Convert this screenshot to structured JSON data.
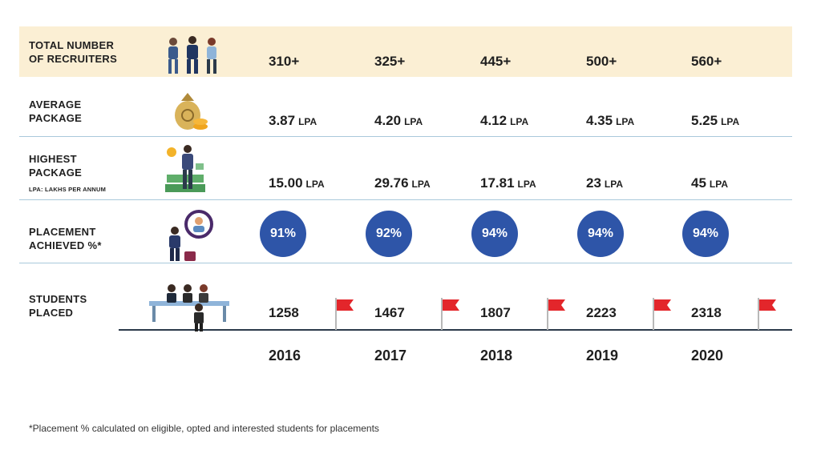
{
  "chart_data": {
    "type": "table",
    "columns": [
      "2016",
      "2017",
      "2018",
      "2019",
      "2020"
    ],
    "rows": [
      {
        "label": "TOTAL NUMBER OF RECRUITERS",
        "label_lines": [
          "TOTAL NUMBER",
          "OF RECRUITERS"
        ],
        "icon": "recruiters-icon",
        "values": [
          "310+",
          "325+",
          "445+",
          "500+",
          "560+"
        ],
        "numbers": [
          310,
          325,
          445,
          500,
          560
        ]
      },
      {
        "label": "AVERAGE PACKAGE",
        "label_lines": [
          "AVERAGE",
          "PACKAGE"
        ],
        "icon": "money-bag-icon",
        "values": [
          "3.87",
          "4.20",
          "4.12",
          "4.35",
          "5.25"
        ],
        "unit": "LPA",
        "numbers": [
          3.87,
          4.2,
          4.12,
          4.35,
          5.25
        ]
      },
      {
        "label": "HIGHEST PACKAGE",
        "label_lines": [
          "HIGHEST",
          "PACKAGE"
        ],
        "sublabel": "LPA: LAKHS PER ANNUM",
        "icon": "businessman-money-icon",
        "values": [
          "15.00",
          "29.76",
          "17.81",
          "23",
          "45"
        ],
        "unit": "LPA",
        "numbers": [
          15.0,
          29.76,
          17.81,
          23,
          45
        ]
      },
      {
        "label": "PLACEMENT ACHIEVED %*",
        "label_lines": [
          "PLACEMENT",
          "ACHIEVED %*"
        ],
        "icon": "placement-icon",
        "values": [
          "91%",
          "92%",
          "94%",
          "94%",
          "94%"
        ],
        "numbers": [
          91,
          92,
          94,
          94,
          94
        ]
      },
      {
        "label": "STUDENTS PLACED",
        "label_lines": [
          "STUDENTS",
          "PLACED"
        ],
        "icon": "interview-panel-icon",
        "values": [
          "1258",
          "1467",
          "1807",
          "2223",
          "2318"
        ],
        "numbers": [
          1258,
          1467,
          1807,
          2223,
          2318
        ]
      }
    ]
  },
  "footnote": "*Placement % calculated on eligible, opted and interested students for placements",
  "colors": {
    "header_band": "#fbefd4",
    "badge": "#2e55a8",
    "flag": "#e3262b",
    "divider": "#a9c9db",
    "baseline": "#2b3a4a"
  }
}
